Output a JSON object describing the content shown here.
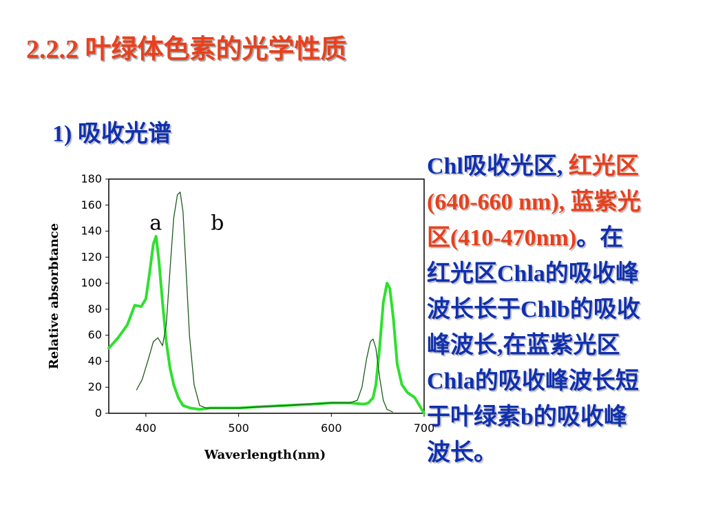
{
  "slide": {
    "title": "2.2.2 叶绿体色素的光学性质",
    "subtitle": "1) 吸收光谱"
  },
  "description": {
    "lines": [
      [
        {
          "text": "Chl吸收光区, ",
          "color": "blue"
        },
        {
          "text": "红光区",
          "color": "red"
        }
      ],
      [
        {
          "text": "(640-660 nm), 蓝紫光",
          "color": "red"
        }
      ],
      [
        {
          "text": "区(410-470nm)",
          "color": "red"
        },
        {
          "text": "。在",
          "color": "blue"
        }
      ],
      [
        {
          "text": "红光区Chla的吸收峰",
          "color": "blue"
        }
      ],
      [
        {
          "text": "波长长于Chlb的吸收",
          "color": "blue"
        }
      ],
      [
        {
          "text": "峰波长,在蓝紫光区",
          "color": "blue"
        }
      ],
      [
        {
          "text": "Chla的吸收峰波长短",
          "color": "blue"
        }
      ],
      [
        {
          "text": "于叶绿素b的吸收峰",
          "color": "blue"
        }
      ],
      [
        {
          "text": "波长。",
          "color": "blue"
        }
      ]
    ],
    "colors": {
      "blue": "#1030b0",
      "red": "#e8401c"
    }
  },
  "chart_data": {
    "type": "line",
    "xlabel": "Waverlength(nm)",
    "ylabel": "Relative absorbtance",
    "xlim": [
      360,
      700
    ],
    "ylim": [
      0,
      180
    ],
    "xticks": [
      400,
      500,
      600,
      700
    ],
    "yticks": [
      0,
      20,
      40,
      60,
      80,
      100,
      120,
      140,
      160,
      180
    ],
    "grid": false,
    "series": [
      {
        "name": "a",
        "color": "#2ee02e",
        "x": [
          360,
          370,
          380,
          388,
          395,
          400,
          404,
          408,
          411,
          414,
          418,
          422,
          426,
          430,
          435,
          440,
          448,
          458,
          470,
          500,
          520,
          550,
          580,
          600,
          620,
          635,
          640,
          645,
          648,
          652,
          656,
          660,
          663,
          667,
          671,
          676,
          682,
          690,
          700
        ],
        "y": [
          50,
          58,
          68,
          83,
          82,
          88,
          108,
          130,
          136,
          118,
          85,
          55,
          35,
          22,
          12,
          6,
          4,
          3,
          4,
          4,
          5,
          6,
          7,
          8,
          8,
          7,
          8,
          12,
          22,
          50,
          85,
          100,
          96,
          72,
          38,
          22,
          16,
          12,
          0
        ]
      },
      {
        "name": "b",
        "color": "#1a5a1a",
        "x": [
          390,
          396,
          402,
          408,
          413,
          418,
          422,
          426,
          430,
          434,
          437,
          440,
          443,
          447,
          452,
          458,
          465,
          480,
          500,
          550,
          600,
          620,
          628,
          633,
          638,
          642,
          645,
          648,
          652,
          656,
          660,
          663,
          666
        ],
        "y": [
          18,
          26,
          40,
          55,
          58,
          52,
          68,
          110,
          150,
          168,
          170,
          155,
          115,
          60,
          22,
          6,
          4,
          4,
          4,
          6,
          8,
          8,
          10,
          20,
          42,
          55,
          57,
          50,
          28,
          10,
          3,
          2,
          1
        ]
      }
    ],
    "curve_labels": [
      {
        "text": "a",
        "x": 404,
        "y": 141
      },
      {
        "text": "b",
        "x": 470,
        "y": 141
      }
    ]
  }
}
